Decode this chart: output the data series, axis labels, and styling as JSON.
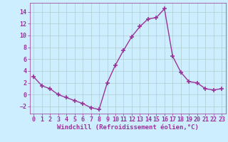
{
  "x": [
    0,
    1,
    2,
    3,
    4,
    5,
    6,
    7,
    8,
    9,
    10,
    11,
    12,
    13,
    14,
    15,
    16,
    17,
    18,
    19,
    20,
    21,
    22,
    23
  ],
  "y": [
    3,
    1.5,
    1,
    0,
    -0.5,
    -1,
    -1.5,
    -2.2,
    -2.5,
    2,
    5,
    7.5,
    9.8,
    11.5,
    12.8,
    13,
    14.5,
    6.5,
    3.8,
    2.2,
    2,
    1,
    0.8,
    1
  ],
  "line_color": "#993399",
  "marker": "+",
  "marker_size": 4,
  "marker_linewidth": 1.2,
  "line_width": 1.0,
  "bg_color": "#cceeff",
  "grid_color": "#aaddcc",
  "xlabel": "Windchill (Refroidissement éolien,°C)",
  "xlabel_color": "#993399",
  "xlabel_fontsize": 6.5,
  "tick_color": "#993399",
  "tick_fontsize": 6,
  "ylim": [
    -3.2,
    15.5
  ],
  "xlim": [
    -0.5,
    23.5
  ],
  "yticks": [
    -2,
    0,
    2,
    4,
    6,
    8,
    10,
    12,
    14
  ],
  "xticks": [
    0,
    1,
    2,
    3,
    4,
    5,
    6,
    7,
    8,
    9,
    10,
    11,
    12,
    13,
    14,
    15,
    16,
    17,
    18,
    19,
    20,
    21,
    22,
    23
  ],
  "spine_color": "#993399"
}
